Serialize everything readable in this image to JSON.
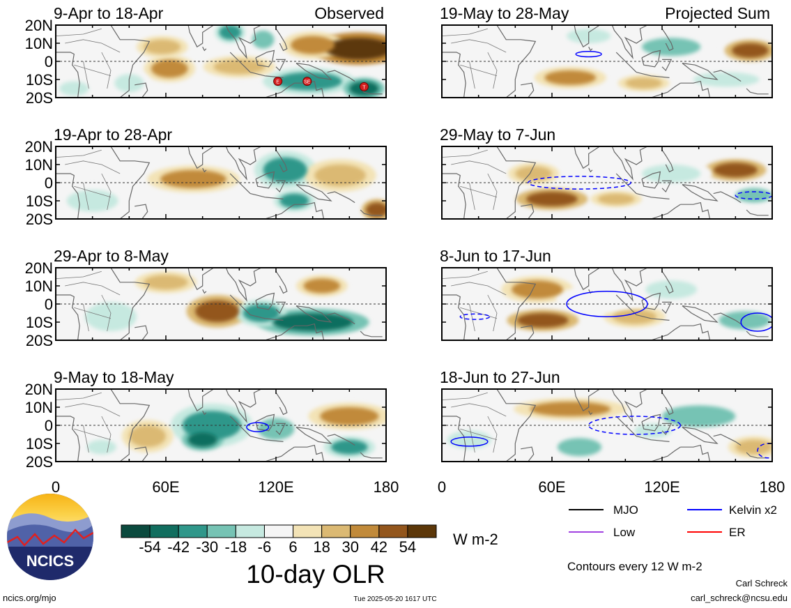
{
  "chart_data": {
    "type": "heatmap",
    "units": "W m-2",
    "title": "10-day OLR",
    "x_ticks": [
      "0",
      "60E",
      "120E",
      "180"
    ],
    "y_ticks": [
      "20N",
      "10N",
      "0",
      "10S",
      "20S"
    ],
    "xlim": [
      0,
      180
    ],
    "ylim": [
      -20,
      20
    ],
    "colorbar": {
      "labels": [
        "-54",
        "-42",
        "-30",
        "-18",
        "-6",
        "6",
        "18",
        "30",
        "42",
        "54"
      ],
      "colors": [
        "#0b4a3e",
        "#116e5f",
        "#2f978a",
        "#76c3b4",
        "#c6e9e0",
        "#f5f5f5",
        "#f3e3b6",
        "#dbb973",
        "#c18a3a",
        "#93561c",
        "#5c3709"
      ]
    },
    "column_labels": {
      "observed": "Observed",
      "projected": "Projected Sum"
    },
    "legend": [
      {
        "name": "MJO",
        "color": "#000000"
      },
      {
        "name": "Kelvin x2",
        "color": "#0000ff"
      },
      {
        "name": "Low",
        "color": "#a040e0"
      },
      {
        "name": "ER",
        "color": "#ff0000"
      }
    ],
    "contour_note": "Contours every 12 W m-2",
    "panels": [
      {
        "column": "observed",
        "period": "9-Apr to 18-Apr",
        "storms": [
          {
            "label": "E",
            "lon": 121,
            "lat": -11
          },
          {
            "label": "SE",
            "lon": 137,
            "lat": -11
          },
          {
            "label": "T",
            "lon": 168,
            "lat": -14
          }
        ],
        "anomalies": [
          {
            "lon": 165,
            "lat": 7,
            "rx": 18,
            "ry": 6,
            "v": 54
          },
          {
            "lon": 140,
            "lat": 9,
            "rx": 12,
            "ry": 5,
            "v": 30
          },
          {
            "lon": 62,
            "lat": -4,
            "rx": 10,
            "ry": 5,
            "v": 30
          },
          {
            "lon": 58,
            "lat": 8,
            "rx": 10,
            "ry": 4,
            "v": 18
          },
          {
            "lon": 95,
            "lat": 16,
            "rx": 6,
            "ry": 4,
            "v": -42
          },
          {
            "lon": 113,
            "lat": 12,
            "rx": 6,
            "ry": 5,
            "v": -30
          },
          {
            "lon": 138,
            "lat": -11,
            "rx": 18,
            "ry": 5,
            "v": -42
          },
          {
            "lon": 168,
            "lat": -15,
            "rx": 8,
            "ry": 4,
            "v": -54
          },
          {
            "lon": 40,
            "lat": -12,
            "rx": 8,
            "ry": 5,
            "v": -18
          },
          {
            "lon": 10,
            "lat": -15,
            "rx": 8,
            "ry": 4,
            "v": -18
          },
          {
            "lon": 100,
            "lat": -3,
            "rx": 14,
            "ry": 4,
            "v": 18
          }
        ],
        "contours": []
      },
      {
        "column": "projected",
        "period": "19-May to 28-May",
        "anomalies": [
          {
            "lon": 168,
            "lat": 6,
            "rx": 10,
            "ry": 4,
            "v": 42
          },
          {
            "lon": 70,
            "lat": -9,
            "rx": 14,
            "ry": 4,
            "v": 30
          },
          {
            "lon": 125,
            "lat": 8,
            "rx": 16,
            "ry": 5,
            "v": -30
          },
          {
            "lon": 80,
            "lat": 14,
            "rx": 12,
            "ry": 4,
            "v": -18
          },
          {
            "lon": 155,
            "lat": -10,
            "rx": 18,
            "ry": 4,
            "v": -18
          },
          {
            "lon": 110,
            "lat": -12,
            "rx": 10,
            "ry": 3,
            "v": 18
          }
        ],
        "contours": [
          {
            "type": "Kelvin x2",
            "dashed": false,
            "lon": 80,
            "lat": 4,
            "rx": 7,
            "ry": 1.5
          }
        ]
      },
      {
        "column": "observed",
        "period": "19-Apr to 28-Apr",
        "anomalies": [
          {
            "lon": 75,
            "lat": 2,
            "rx": 18,
            "ry": 5,
            "v": 30
          },
          {
            "lon": 125,
            "lat": 7,
            "rx": 12,
            "ry": 7,
            "v": -42
          },
          {
            "lon": 130,
            "lat": -10,
            "rx": 8,
            "ry": 4,
            "v": -42
          },
          {
            "lon": 175,
            "lat": -15,
            "rx": 6,
            "ry": 4,
            "v": 42
          },
          {
            "lon": 20,
            "lat": -10,
            "rx": 14,
            "ry": 6,
            "v": -18
          },
          {
            "lon": 155,
            "lat": 4,
            "rx": 14,
            "ry": 6,
            "v": 18
          }
        ],
        "contours": []
      },
      {
        "column": "projected",
        "period": "29-May to 7-Jun",
        "anomalies": [
          {
            "lon": 160,
            "lat": 7,
            "rx": 12,
            "ry": 4,
            "v": 42
          },
          {
            "lon": 60,
            "lat": -9,
            "rx": 14,
            "ry": 4,
            "v": 42
          },
          {
            "lon": 125,
            "lat": 5,
            "rx": 16,
            "ry": 5,
            "v": -18
          },
          {
            "lon": 170,
            "lat": -7,
            "rx": 10,
            "ry": 4,
            "v": -30
          },
          {
            "lon": 95,
            "lat": -9,
            "rx": 10,
            "ry": 3,
            "v": 18
          },
          {
            "lon": 50,
            "lat": 5,
            "rx": 10,
            "ry": 4,
            "v": 18
          }
        ],
        "contours": [
          {
            "type": "Kelvin x2",
            "dashed": true,
            "lon": 75,
            "lat": 0,
            "rx": 28,
            "ry": 3.5
          },
          {
            "type": "Kelvin x2",
            "dashed": true,
            "lon": 170,
            "lat": -7,
            "rx": 10,
            "ry": 2
          }
        ]
      },
      {
        "column": "observed",
        "period": "29-Apr to 8-May",
        "anomalies": [
          {
            "lon": 88,
            "lat": -4,
            "rx": 12,
            "ry": 6,
            "v": 42
          },
          {
            "lon": 145,
            "lat": 10,
            "rx": 10,
            "ry": 4,
            "v": 30
          },
          {
            "lon": 140,
            "lat": -10,
            "rx": 22,
            "ry": 5,
            "v": -54
          },
          {
            "lon": 112,
            "lat": -5,
            "rx": 10,
            "ry": 5,
            "v": -42
          },
          {
            "lon": 30,
            "lat": -7,
            "rx": 14,
            "ry": 8,
            "v": -18
          },
          {
            "lon": 60,
            "lat": 12,
            "rx": 12,
            "ry": 4,
            "v": 18
          }
        ],
        "contours": []
      },
      {
        "column": "projected",
        "period": "8-Jun to 17-Jun",
        "anomalies": [
          {
            "lon": 52,
            "lat": 8,
            "rx": 14,
            "ry": 5,
            "v": 30
          },
          {
            "lon": 55,
            "lat": -9,
            "rx": 14,
            "ry": 4,
            "v": 42
          },
          {
            "lon": 125,
            "lat": 8,
            "rx": 14,
            "ry": 5,
            "v": -18
          },
          {
            "lon": 165,
            "lat": -9,
            "rx": 14,
            "ry": 5,
            "v": -30
          },
          {
            "lon": 105,
            "lat": -7,
            "rx": 12,
            "ry": 4,
            "v": 18
          },
          {
            "lon": 90,
            "lat": 3,
            "rx": 20,
            "ry": 5,
            "v": -6
          }
        ],
        "contours": [
          {
            "type": "Kelvin x2",
            "dashed": false,
            "lon": 90,
            "lat": 0,
            "rx": 22,
            "ry": 7
          },
          {
            "type": "Kelvin x2",
            "dashed": false,
            "lon": 172,
            "lat": -10,
            "rx": 9,
            "ry": 5
          },
          {
            "type": "Kelvin x2",
            "dashed": true,
            "lon": 18,
            "lat": -7,
            "rx": 8,
            "ry": 1.5
          }
        ]
      },
      {
        "column": "observed",
        "period": "9-May to 18-May",
        "anomalies": [
          {
            "lon": 85,
            "lat": 0,
            "rx": 16,
            "ry": 8,
            "v": -42
          },
          {
            "lon": 120,
            "lat": -2,
            "rx": 10,
            "ry": 6,
            "v": -30
          },
          {
            "lon": 80,
            "lat": -8,
            "rx": 8,
            "ry": 4,
            "v": -54
          },
          {
            "lon": 160,
            "lat": -12,
            "rx": 10,
            "ry": 4,
            "v": -42
          },
          {
            "lon": 160,
            "lat": 5,
            "rx": 16,
            "ry": 5,
            "v": 30
          },
          {
            "lon": 50,
            "lat": -6,
            "rx": 10,
            "ry": 6,
            "v": 18
          },
          {
            "lon": 25,
            "lat": -12,
            "rx": 8,
            "ry": 4,
            "v": -18
          }
        ],
        "contours": [
          {
            "type": "Kelvin x2",
            "dashed": false,
            "lon": 110,
            "lat": -1,
            "rx": 6,
            "ry": 2.5
          }
        ]
      },
      {
        "column": "projected",
        "period": "18-Jun to 27-Jun",
        "anomalies": [
          {
            "lon": 70,
            "lat": 9,
            "rx": 22,
            "ry": 4,
            "v": 30
          },
          {
            "lon": 15,
            "lat": -8,
            "rx": 12,
            "ry": 5,
            "v": -18
          },
          {
            "lon": 140,
            "lat": 5,
            "rx": 20,
            "ry": 6,
            "v": -30
          },
          {
            "lon": 115,
            "lat": -3,
            "rx": 10,
            "ry": 4,
            "v": -18
          },
          {
            "lon": 75,
            "lat": -12,
            "rx": 12,
            "ry": 5,
            "v": -30
          },
          {
            "lon": 170,
            "lat": -12,
            "rx": 10,
            "ry": 4,
            "v": 18
          }
        ],
        "contours": [
          {
            "type": "Kelvin x2",
            "dashed": false,
            "lon": 15,
            "lat": -9,
            "rx": 10,
            "ry": 2.5
          },
          {
            "type": "Kelvin x2",
            "dashed": true,
            "lon": 105,
            "lat": 0,
            "rx": 25,
            "ry": 5
          },
          {
            "type": "Kelvin x2",
            "dashed": true,
            "lon": 178,
            "lat": -14,
            "rx": 6,
            "ry": 4
          }
        ]
      }
    ]
  },
  "logo": {
    "text": "NCICS"
  },
  "footer": {
    "url": "ncics.org/mjo",
    "timestamp": "Tue 2025-05-20 1617 UTC",
    "author": "Carl Schreck",
    "email": "carl_schreck@ncsu.edu"
  }
}
